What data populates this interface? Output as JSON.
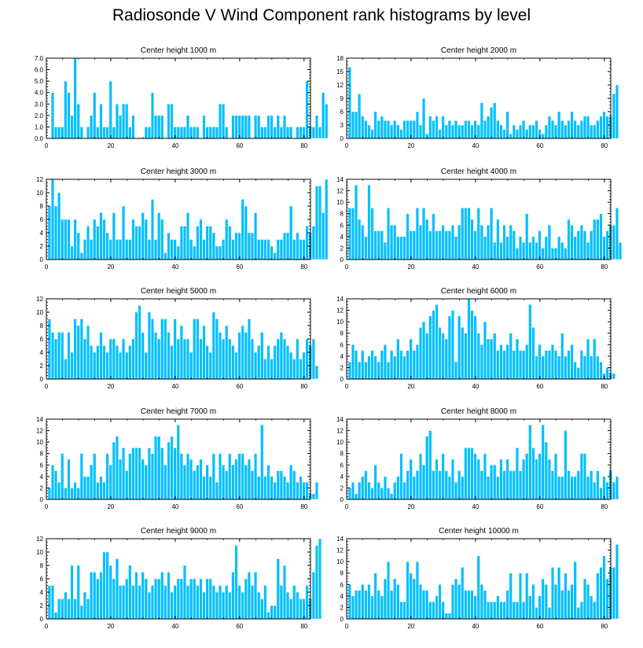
{
  "title": "Radiosonde V Wind Component rank histograms by level",
  "bar_color": "#00bfff",
  "chart_data": [
    {
      "type": "bar",
      "title": "Center height 1000 m",
      "xlim": [
        0,
        82
      ],
      "xticks": [
        0,
        20,
        40,
        60,
        80
      ],
      "ylim": [
        0,
        7
      ],
      "yticks": [
        "0.0",
        "1.0",
        "2.0",
        "3.0",
        "4.0",
        "5.0",
        "6.0",
        "7.0"
      ],
      "values": [
        0,
        4,
        1,
        1,
        1,
        5,
        4,
        2,
        7,
        3,
        1,
        0,
        1,
        2,
        4,
        1,
        3,
        1,
        1,
        5,
        1,
        3,
        2,
        3,
        3,
        1,
        2,
        0,
        0,
        0,
        1,
        1,
        4,
        2,
        2,
        2,
        0,
        3,
        3,
        1,
        1,
        1,
        1,
        2,
        1,
        1,
        1,
        0,
        2,
        1,
        1,
        1,
        1,
        3,
        3,
        1,
        0,
        2,
        2,
        2,
        2,
        2,
        2,
        0,
        2,
        2,
        1,
        1,
        2,
        2,
        1,
        2,
        1,
        2,
        1,
        1,
        0,
        1,
        1,
        1,
        5,
        1,
        1,
        2,
        1,
        4,
        3
      ]
    },
    {
      "type": "bar",
      "title": "Center height 2000 m",
      "xlim": [
        0,
        82
      ],
      "xticks": [
        0,
        20,
        40,
        60,
        80
      ],
      "ylim": [
        0,
        18
      ],
      "yticks": [
        "0",
        "3",
        "6",
        "9",
        "12",
        "15",
        "18"
      ],
      "values": [
        16,
        6,
        6,
        10,
        5,
        4,
        3,
        2,
        6,
        4,
        5,
        4,
        4,
        3,
        4,
        3,
        2,
        4,
        4,
        4,
        4,
        6,
        3,
        9,
        1,
        5,
        4,
        5,
        2,
        5,
        3,
        4,
        3,
        4,
        3,
        3,
        4,
        4,
        3,
        4,
        3,
        8,
        4,
        5,
        7,
        8,
        4,
        3,
        2,
        6,
        1,
        3,
        2,
        3,
        4,
        2,
        3,
        3,
        4,
        2,
        1,
        3,
        5,
        4,
        3,
        6,
        4,
        3,
        4,
        6,
        4,
        3,
        4,
        5,
        5,
        3,
        3,
        4,
        5,
        6,
        5,
        5,
        10,
        12
      ]
    },
    {
      "type": "bar",
      "title": "Center height 3000 m",
      "xlim": [
        0,
        82
      ],
      "xticks": [
        0,
        20,
        40,
        60,
        80
      ],
      "ylim": [
        0,
        12
      ],
      "yticks": [
        "0",
        "2",
        "4",
        "6",
        "8",
        "10",
        "12"
      ],
      "values": [
        8,
        12,
        8,
        10,
        6,
        6,
        6,
        2,
        6,
        4,
        1,
        3,
        5,
        3,
        6,
        5,
        7,
        6,
        4,
        3,
        7,
        3,
        3,
        8,
        3,
        3,
        6,
        5,
        5,
        7,
        6,
        3,
        9,
        3,
        7,
        6,
        1,
        4,
        3,
        3,
        2,
        5,
        5,
        7,
        3,
        2,
        5,
        6,
        3,
        5,
        5,
        4,
        2,
        2,
        3,
        6,
        5,
        3,
        4,
        4,
        9,
        8,
        4,
        4,
        7,
        3,
        3,
        3,
        3,
        2,
        1,
        3,
        3,
        4,
        4,
        8,
        3,
        4,
        3,
        3,
        5,
        4,
        5,
        11,
        11,
        7,
        12
      ]
    },
    {
      "type": "bar",
      "title": "Center height 4000 m",
      "xlim": [
        0,
        82
      ],
      "xticks": [
        0,
        20,
        40,
        60,
        80
      ],
      "ylim": [
        0,
        14
      ],
      "yticks": [
        "0",
        "2",
        "4",
        "6",
        "8",
        "10",
        "12",
        "14"
      ],
      "values": [
        9,
        9,
        13,
        7,
        6,
        4,
        13,
        9,
        5,
        5,
        5,
        3,
        9,
        6,
        6,
        4,
        4,
        4,
        8,
        5,
        5,
        9,
        6,
        9,
        7,
        5,
        8,
        5,
        5,
        6,
        5,
        5,
        6,
        4,
        6,
        9,
        9,
        9,
        7,
        5,
        9,
        6,
        4,
        6,
        9,
        3,
        7,
        3,
        6,
        4,
        6,
        5,
        2,
        4,
        3,
        8,
        3,
        4,
        3,
        5,
        2,
        4,
        6,
        2,
        2,
        4,
        3,
        2,
        7,
        6,
        4,
        5,
        6,
        5,
        3,
        5,
        7,
        7,
        8,
        4,
        5,
        6,
        6,
        9,
        3
      ]
    },
    {
      "type": "bar",
      "title": "Center height 5000 m",
      "xlim": [
        0,
        82
      ],
      "xticks": [
        0,
        20,
        40,
        60,
        80
      ],
      "ylim": [
        0,
        12
      ],
      "yticks": [
        "0",
        "2",
        "4",
        "6",
        "8",
        "10",
        "12"
      ],
      "values": [
        9,
        7,
        6,
        7,
        7,
        3,
        7,
        4,
        9,
        8,
        9,
        6,
        8,
        5,
        4,
        5,
        7,
        5,
        4,
        6,
        6,
        5,
        4,
        6,
        4,
        5,
        6,
        10,
        11,
        7,
        4,
        10,
        9,
        7,
        6,
        9,
        9,
        7,
        5,
        9,
        6,
        8,
        6,
        6,
        4,
        9,
        9,
        6,
        8,
        5,
        4,
        10,
        9,
        7,
        6,
        8,
        6,
        5,
        4,
        7,
        8,
        7,
        9,
        6,
        4,
        5,
        7,
        3,
        5,
        3,
        5,
        6,
        7,
        6,
        5,
        4,
        3,
        6,
        3,
        4,
        6,
        5,
        6,
        2
      ]
    },
    {
      "type": "bar",
      "title": "Center height 6000 m",
      "xlim": [
        0,
        82
      ],
      "xticks": [
        0,
        20,
        40,
        60,
        80
      ],
      "ylim": [
        0,
        14
      ],
      "yticks": [
        "0",
        "2",
        "4",
        "6",
        "8",
        "10",
        "12",
        "14"
      ],
      "values": [
        3,
        6,
        5,
        3,
        5,
        3,
        4,
        5,
        4,
        3,
        5,
        6,
        3,
        5,
        4,
        7,
        5,
        4,
        5,
        7,
        5,
        6,
        9,
        10,
        8,
        11,
        12,
        13,
        9,
        8,
        7,
        11,
        12,
        3,
        11,
        9,
        8,
        14,
        12,
        11,
        8,
        6,
        10,
        7,
        7,
        8,
        5,
        6,
        5,
        6,
        8,
        5,
        7,
        5,
        5,
        6,
        13,
        9,
        4,
        6,
        4,
        5,
        5,
        6,
        5,
        4,
        8,
        4,
        5,
        6,
        3,
        2,
        5,
        4,
        7,
        4,
        7,
        4,
        3,
        1,
        2,
        1,
        1
      ]
    },
    {
      "type": "bar",
      "title": "Center height 7000 m",
      "xlim": [
        0,
        82
      ],
      "xticks": [
        0,
        20,
        40,
        60,
        80
      ],
      "ylim": [
        0,
        14
      ],
      "yticks": [
        "0",
        "2",
        "4",
        "6",
        "8",
        "10",
        "12",
        "14"
      ],
      "values": [
        2,
        6,
        5,
        3,
        8,
        2,
        7,
        2,
        3,
        2,
        8,
        4,
        4,
        6,
        8,
        3,
        4,
        3,
        8,
        6,
        10,
        11,
        7,
        9,
        5,
        8,
        9,
        9,
        9,
        7,
        6,
        9,
        8,
        11,
        11,
        9,
        6,
        10,
        11,
        9,
        13,
        8,
        6,
        8,
        7,
        5,
        6,
        7,
        4,
        6,
        4,
        8,
        3,
        8,
        6,
        5,
        8,
        6,
        7,
        8,
        8,
        6,
        7,
        5,
        8,
        4,
        13,
        4,
        6,
        4,
        3,
        5,
        5,
        4,
        3,
        6,
        5,
        3,
        4,
        3,
        3,
        1,
        1,
        3
      ]
    },
    {
      "type": "bar",
      "title": "Center height 8000 m",
      "xlim": [
        0,
        82
      ],
      "xticks": [
        0,
        20,
        40,
        60,
        80
      ],
      "ylim": [
        0,
        14
      ],
      "yticks": [
        "0",
        "2",
        "4",
        "6",
        "8",
        "10",
        "12",
        "14"
      ],
      "values": [
        2,
        3,
        1,
        3,
        4,
        5,
        3,
        2,
        6,
        3,
        2,
        4,
        2,
        1,
        3,
        4,
        8,
        3,
        5,
        7,
        4,
        5,
        8,
        6,
        11,
        12,
        5,
        7,
        5,
        8,
        5,
        4,
        7,
        3,
        5,
        4,
        9,
        9,
        9,
        8,
        7,
        5,
        8,
        4,
        6,
        6,
        4,
        7,
        5,
        7,
        5,
        5,
        9,
        5,
        7,
        8,
        13,
        9,
        7,
        8,
        13,
        10,
        7,
        5,
        8,
        4,
        4,
        12,
        5,
        4,
        4,
        5,
        8,
        8,
        4,
        5,
        3,
        5,
        2,
        4,
        3,
        5,
        3,
        4
      ]
    },
    {
      "type": "bar",
      "title": "Center height 9000 m",
      "xlim": [
        0,
        82
      ],
      "xticks": [
        0,
        20,
        40,
        60,
        80
      ],
      "ylim": [
        0,
        12
      ],
      "yticks": [
        "0",
        "2",
        "4",
        "6",
        "8",
        "10",
        "12"
      ],
      "values": [
        5,
        5,
        1,
        3,
        3,
        4,
        3,
        8,
        3,
        8,
        2,
        4,
        3,
        7,
        7,
        6,
        7,
        10,
        10,
        8,
        6,
        9,
        5,
        5,
        6,
        8,
        5,
        7,
        5,
        7,
        6,
        4,
        5,
        6,
        6,
        7,
        5,
        7,
        4,
        5,
        6,
        6,
        8,
        5,
        6,
        6,
        5,
        6,
        4,
        6,
        6,
        5,
        4,
        5,
        4,
        5,
        4,
        7,
        11,
        5,
        4,
        6,
        7,
        5,
        7,
        4,
        3,
        5,
        1,
        2,
        2,
        9,
        5,
        8,
        4,
        3,
        5,
        4,
        3,
        3,
        5,
        3,
        7,
        11,
        12
      ]
    },
    {
      "type": "bar",
      "title": "Center height 10000 m",
      "xlim": [
        0,
        82
      ],
      "xticks": [
        0,
        20,
        40,
        60,
        80
      ],
      "ylim": [
        0,
        14
      ],
      "yticks": [
        "0",
        "2",
        "4",
        "6",
        "8",
        "10",
        "12",
        "14"
      ],
      "values": [
        6,
        4,
        5,
        5,
        6,
        5,
        6,
        4,
        8,
        5,
        4,
        7,
        10,
        5,
        7,
        6,
        3,
        3,
        10,
        8,
        7,
        10,
        6,
        5,
        5,
        3,
        3,
        4,
        6,
        3,
        1,
        1,
        6,
        7,
        6,
        9,
        5,
        5,
        5,
        4,
        11,
        6,
        5,
        3,
        3,
        3,
        4,
        3,
        3,
        5,
        8,
        3,
        3,
        8,
        3,
        8,
        4,
        6,
        2,
        4,
        7,
        6,
        2,
        9,
        6,
        9,
        5,
        8,
        5,
        6,
        10,
        2,
        3,
        7,
        6,
        4,
        3,
        8,
        9,
        11,
        7,
        9,
        9,
        13
      ]
    }
  ]
}
